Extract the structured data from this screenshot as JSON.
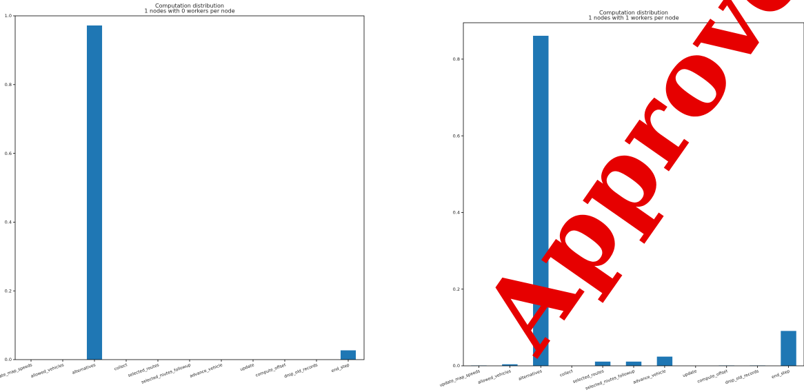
{
  "chart_data": [
    {
      "type": "bar",
      "title": "Computation distribution\n1 nodes with 0 workers per node",
      "categories": [
        "update_map_speeds",
        "allowed_vehicles",
        "alternatives",
        "collect",
        "selected_routes",
        "selected_routes_followup",
        "advance_vehicle",
        "update",
        "compute_offset",
        "drop_old_records",
        "end_step"
      ],
      "values": [
        0.0,
        0.0,
        0.972,
        0.0,
        0.0,
        0.0,
        0.0,
        0.0,
        0.0,
        0.0,
        0.027
      ],
      "ylim": [
        0,
        1.0
      ],
      "yticks": [
        "0.0",
        "0.2",
        "0.4",
        "0.6",
        "0.8",
        "1.0"
      ],
      "color": "#1f77b4",
      "grid": false
    },
    {
      "type": "bar",
      "title": "Computation distribution\n1 nodes with 1 workers per node",
      "categories": [
        "update_map_speeds",
        "allowed_vehicles",
        "alternatives",
        "collect",
        "selected_routes",
        "selected_routes_followup",
        "advance_vehicle",
        "update",
        "compute_offset",
        "drop_old_records",
        "end_step"
      ],
      "values": [
        0.001,
        0.004,
        0.861,
        0.0,
        0.011,
        0.011,
        0.024,
        0.0,
        0.001,
        0.001,
        0.091
      ],
      "ylim": [
        0,
        0.895
      ],
      "yticks": [
        "0.0",
        "0.2",
        "0.4",
        "0.6",
        "0.8"
      ],
      "color": "#1f77b4",
      "grid": false
    }
  ],
  "watermark": {
    "text": "Approved by the R",
    "color": "#e60000"
  }
}
